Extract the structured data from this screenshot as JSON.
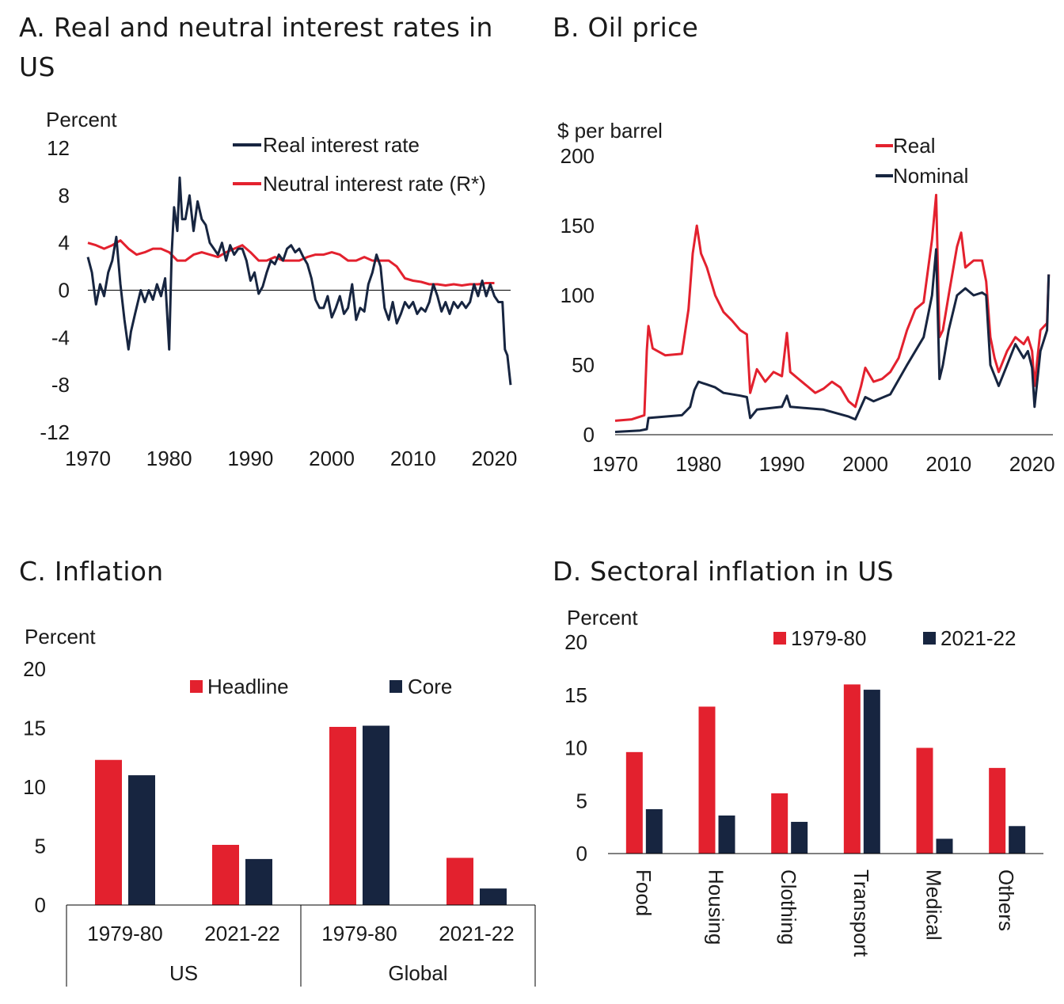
{
  "colors": {
    "red": "#e3212e",
    "navy": "#172540"
  },
  "chart_data": [
    {
      "id": "A",
      "type": "line",
      "title": "A. Real and neutral interest rates in US",
      "ylabel": "Percent",
      "ylim": [
        -12,
        12
      ],
      "yticks": [
        12,
        8,
        4,
        0,
        -4,
        -8,
        -12
      ],
      "xlim": [
        1970,
        2022
      ],
      "xticks": [
        1970,
        1980,
        1990,
        2000,
        2010,
        2020
      ],
      "legend": "top-right",
      "series": [
        {
          "name": "Real interest rate",
          "color": "#172540",
          "x": [
            1970,
            1970.5,
            1971,
            1971.5,
            1972,
            1972.5,
            1973,
            1973.5,
            1974,
            1974.5,
            1975,
            1975.3,
            1975.8,
            1976.5,
            1977,
            1977.5,
            1978,
            1978.5,
            1979,
            1979.5,
            1980,
            1980.3,
            1980.6,
            1981,
            1981.3,
            1981.6,
            1982,
            1982.5,
            1983,
            1983.5,
            1984,
            1984.5,
            1985,
            1985.5,
            1986,
            1986.5,
            1987,
            1987.5,
            1988,
            1988.5,
            1989,
            1989.5,
            1990,
            1990.5,
            1991,
            1991.5,
            1992,
            1992.5,
            1993,
            1993.5,
            1994,
            1994.5,
            1995,
            1995.5,
            1996,
            1996.5,
            1997,
            1997.5,
            1998,
            1998.5,
            1999,
            1999.5,
            2000,
            2000.5,
            2001,
            2001.5,
            2002,
            2002.5,
            2003,
            2003.5,
            2004,
            2004.5,
            2005,
            2005.5,
            2006,
            2006.5,
            2007,
            2007.5,
            2008,
            2008.5,
            2009,
            2009.5,
            2010,
            2010.5,
            2011,
            2011.5,
            2012,
            2012.5,
            2013,
            2013.5,
            2014,
            2014.5,
            2015,
            2015.5,
            2016,
            2016.5,
            2017,
            2017.5,
            2018,
            2018.5,
            2019,
            2019.5,
            2020,
            2020.5,
            2021,
            2021.3,
            2021.6,
            2022
          ],
          "y": [
            2.8,
            1.5,
            -1.2,
            0.5,
            -0.5,
            1.5,
            2.5,
            4.5,
            0.5,
            -2.5,
            -5,
            -3.5,
            -2,
            0,
            -1,
            0,
            -0.8,
            0.5,
            -0.5,
            1,
            -5,
            3,
            7,
            5,
            9.5,
            6,
            6,
            8,
            5,
            7.5,
            6,
            5.5,
            4,
            3.5,
            3,
            4,
            2.5,
            3.8,
            3,
            3.5,
            3.5,
            2.5,
            0.8,
            1.5,
            -0.3,
            0.3,
            1.5,
            2.5,
            2.2,
            3,
            2.5,
            3.5,
            3.8,
            3.2,
            3.5,
            2.8,
            2.2,
            1,
            -0.8,
            -1.5,
            -1.5,
            -0.5,
            -2.3,
            -1.5,
            -0.5,
            -2,
            -1.5,
            0.5,
            -2.5,
            -1.5,
            -1.8,
            0.5,
            1.5,
            3,
            2,
            -1.5,
            -2.5,
            -1,
            -2.8,
            -2,
            -1,
            -1.5,
            -1,
            -2,
            -1.5,
            -1.8,
            -1,
            0.5,
            -0.5,
            -1.8,
            -1,
            -2,
            -1,
            -1.5,
            -1,
            -1.5,
            -1,
            0.5,
            -0.5,
            0.8,
            -0.5,
            0.5,
            -0.5,
            -1,
            -1,
            -5,
            -5.5,
            -8
          ]
        },
        {
          "name": "Neutral interest rate (R*)",
          "color": "#e3212e",
          "x": [
            1970,
            1971,
            1972,
            1973,
            1974,
            1975,
            1976,
            1977,
            1978,
            1979,
            1980,
            1981,
            1982,
            1983,
            1984,
            1985,
            1986,
            1987,
            1988,
            1989,
            1990,
            1991,
            1992,
            1993,
            1994,
            1995,
            1996,
            1997,
            1998,
            1999,
            2000,
            2001,
            2002,
            2003,
            2004,
            2005,
            2006,
            2007,
            2008,
            2009,
            2010,
            2011,
            2012,
            2013,
            2014,
            2015,
            2016,
            2017,
            2018,
            2019,
            2020
          ],
          "y": [
            4,
            3.8,
            3.5,
            3.8,
            4.2,
            3.5,
            3,
            3.2,
            3.5,
            3.5,
            3.2,
            2.5,
            2.5,
            3,
            3.2,
            3,
            2.8,
            3.2,
            3.5,
            3.8,
            3.2,
            2.5,
            2.5,
            2.8,
            2.5,
            2.5,
            2.5,
            2.8,
            3,
            3,
            3.2,
            3,
            2.5,
            2.5,
            2.8,
            2.5,
            2.5,
            2.5,
            2,
            1,
            0.8,
            0.7,
            0.5,
            0.5,
            0.4,
            0.5,
            0.4,
            0.5,
            0.5,
            0.6,
            0.6
          ]
        }
      ]
    },
    {
      "id": "B",
      "type": "line",
      "title": "B. Oil price",
      "ylabel": "$ per barrel",
      "ylim": [
        0,
        200
      ],
      "yticks": [
        200,
        150,
        100,
        50,
        0
      ],
      "xlim": [
        1970,
        2022.5
      ],
      "xticks": [
        1970,
        1980,
        1990,
        2000,
        2010,
        2020
      ],
      "legend": "top-right",
      "series": [
        {
          "name": "Real",
          "color": "#e3212e",
          "x": [
            1970,
            1972,
            1973.5,
            1973.8,
            1974,
            1974.5,
            1976,
            1978,
            1978.8,
            1979.3,
            1979.8,
            1980.3,
            1981,
            1982,
            1983,
            1984,
            1985,
            1985.8,
            1986.2,
            1987,
            1988,
            1989,
            1990,
            1990.6,
            1991,
            1992,
            1993,
            1994,
            1995,
            1996,
            1997,
            1998,
            1998.8,
            1999.5,
            2000,
            2001,
            2002,
            2003,
            2004,
            2005,
            2006,
            2007,
            2008,
            2008.5,
            2008.9,
            2009.3,
            2010,
            2011,
            2011.5,
            2012,
            2013,
            2014,
            2014.5,
            2015,
            2015.5,
            2016,
            2017,
            2018,
            2019,
            2019.5,
            2020,
            2020.3,
            2021,
            2021.8,
            2022
          ],
          "y": [
            10,
            11,
            14,
            60,
            78,
            62,
            57,
            58,
            90,
            130,
            150,
            130,
            120,
            100,
            88,
            82,
            75,
            72,
            30,
            47,
            38,
            45,
            42,
            73,
            45,
            40,
            35,
            30,
            33,
            38,
            34,
            24,
            20,
            35,
            48,
            38,
            40,
            45,
            55,
            75,
            90,
            95,
            140,
            172,
            70,
            75,
            100,
            135,
            145,
            120,
            125,
            125,
            110,
            70,
            55,
            45,
            60,
            70,
            65,
            70,
            60,
            35,
            75,
            80,
            115
          ]
        },
        {
          "name": "Nominal",
          "color": "#172540",
          "x": [
            1970,
            1973,
            1973.8,
            1974,
            1978,
            1979,
            1979.5,
            1980,
            1981,
            1982,
            1983,
            1985,
            1985.8,
            1986.2,
            1987,
            1990,
            1990.6,
            1991,
            1995,
            1998,
            1998.8,
            2000,
            2001,
            2003,
            2005,
            2007,
            2008,
            2008.5,
            2008.9,
            2009.3,
            2010,
            2011,
            2012,
            2013,
            2014,
            2014.5,
            2015,
            2016,
            2017,
            2018,
            2019,
            2019.5,
            2020,
            2020.3,
            2021,
            2021.8,
            2022
          ],
          "y": [
            2,
            3,
            4,
            12,
            14,
            20,
            32,
            38,
            36,
            34,
            30,
            28,
            27,
            12,
            18,
            20,
            28,
            20,
            18,
            13,
            11,
            27,
            24,
            29,
            50,
            70,
            100,
            133,
            40,
            50,
            75,
            100,
            105,
            100,
            102,
            100,
            50,
            35,
            50,
            65,
            55,
            60,
            48,
            20,
            60,
            75,
            115
          ]
        }
      ]
    },
    {
      "id": "C",
      "type": "bar",
      "title": "C. Inflation",
      "ylabel": "Percent",
      "ylim": [
        0,
        20
      ],
      "yticks": [
        20,
        15,
        10,
        5,
        0
      ],
      "categories": [
        "1979-80",
        "2021-22",
        "1979-80",
        "2021-22"
      ],
      "groups": [
        "US",
        "Global"
      ],
      "legend": "top-right",
      "series": [
        {
          "name": "Headline",
          "color": "#e3212e",
          "values": [
            12.3,
            5.1,
            15.1,
            4.0
          ]
        },
        {
          "name": "Core",
          "color": "#172540",
          "values": [
            11.0,
            3.9,
            15.2,
            1.4
          ]
        }
      ]
    },
    {
      "id": "D",
      "type": "bar",
      "title": "D. Sectoral inflation in US",
      "ylabel": "Percent",
      "ylim": [
        0,
        20
      ],
      "yticks": [
        20,
        15,
        10,
        5,
        0
      ],
      "categories": [
        "Food",
        "Housing",
        "Clothing",
        "Transport",
        "Medical",
        "Others"
      ],
      "legend": "top-right",
      "series": [
        {
          "name": "1979-80",
          "color": "#e3212e",
          "values": [
            9.6,
            13.9,
            5.7,
            16.0,
            10.0,
            8.1
          ]
        },
        {
          "name": "2021-22",
          "color": "#172540",
          "values": [
            4.2,
            3.6,
            3.0,
            15.5,
            1.4,
            2.6
          ]
        }
      ]
    }
  ]
}
